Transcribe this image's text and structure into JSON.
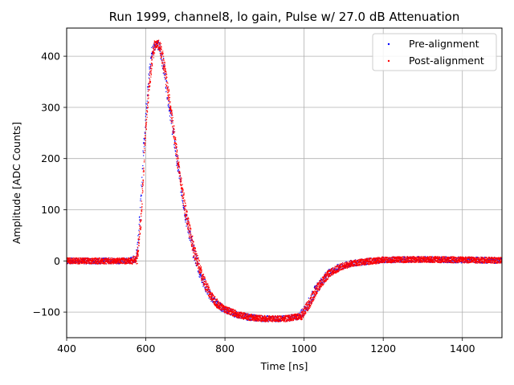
{
  "chart_data": {
    "type": "scatter",
    "title": "Run 1999, channel8, lo gain, Pulse w/ 27.0 dB Attenuation",
    "xlabel": "Time [ns]",
    "ylabel": "Amplitude [ADC Counts]",
    "xlim": [
      400,
      1500
    ],
    "ylim": [
      -150,
      455
    ],
    "xticks": [
      400,
      600,
      800,
      1000,
      1200,
      1400
    ],
    "yticks": [
      -100,
      0,
      100,
      200,
      300,
      400
    ],
    "grid": true,
    "legend_position": "top-right",
    "series": [
      {
        "name": "Pre-alignment",
        "color": "#0000ff",
        "marker": "dot",
        "x": [
          400,
          560,
          575,
          585,
          595,
          605,
          615,
          622,
          628,
          635,
          645,
          660,
          680,
          700,
          720,
          740,
          760,
          780,
          800,
          830,
          860,
          900,
          950,
          990,
          1010,
          1030,
          1060,
          1090,
          1120,
          1160,
          1200,
          1300,
          1400,
          1500
        ],
        "y": [
          0,
          0,
          5,
          80,
          230,
          340,
          405,
          422,
          425,
          415,
          380,
          300,
          190,
          90,
          20,
          -30,
          -65,
          -85,
          -95,
          -105,
          -110,
          -113,
          -113,
          -108,
          -85,
          -55,
          -25,
          -12,
          -5,
          -1,
          2,
          3,
          2,
          1
        ]
      },
      {
        "name": "Post-alignment",
        "color": "#ff0000",
        "marker": "dot",
        "x": [
          400,
          565,
          578,
          588,
          598,
          608,
          618,
          624,
          630,
          637,
          647,
          662,
          682,
          702,
          722,
          742,
          762,
          782,
          802,
          832,
          862,
          902,
          952,
          992,
          1012,
          1032,
          1062,
          1092,
          1122,
          1162,
          1202,
          1302,
          1402,
          1500
        ],
        "y": [
          0,
          0,
          5,
          80,
          230,
          340,
          405,
          422,
          425,
          415,
          380,
          300,
          190,
          90,
          20,
          -30,
          -65,
          -85,
          -95,
          -105,
          -110,
          -113,
          -113,
          -108,
          -85,
          -55,
          -25,
          -12,
          -5,
          -1,
          2,
          3,
          2,
          1
        ]
      }
    ]
  }
}
